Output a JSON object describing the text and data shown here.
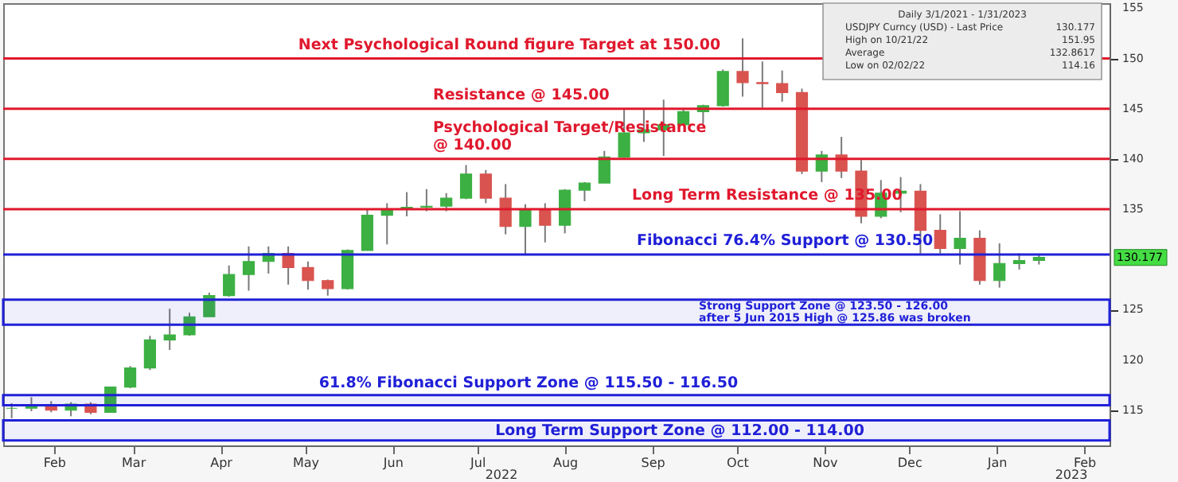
{
  "chart_data": {
    "type": "candlestick",
    "x": [
      "2022-01-31",
      "2022-02-07",
      "2022-02-14",
      "2022-02-21",
      "2022-02-28",
      "2022-03-07",
      "2022-03-14",
      "2022-03-21",
      "2022-03-28",
      "2022-04-04",
      "2022-04-11",
      "2022-04-18",
      "2022-04-25",
      "2022-05-02",
      "2022-05-09",
      "2022-05-16",
      "2022-05-23",
      "2022-05-30",
      "2022-06-06",
      "2022-06-13",
      "2022-06-20",
      "2022-06-27",
      "2022-07-04",
      "2022-07-11",
      "2022-07-18",
      "2022-07-25",
      "2022-08-01",
      "2022-08-08",
      "2022-08-15",
      "2022-08-22",
      "2022-08-29",
      "2022-09-05",
      "2022-09-12",
      "2022-09-19",
      "2022-09-26",
      "2022-10-03",
      "2022-10-10",
      "2022-10-17",
      "2022-10-24",
      "2022-10-31",
      "2022-11-07",
      "2022-11-14",
      "2022-11-21",
      "2022-11-28",
      "2022-12-05",
      "2022-12-12",
      "2022-12-19",
      "2022-12-26",
      "2023-01-02",
      "2023-01-09",
      "2023-01-16",
      "2023-01-23",
      "2023-01-30"
    ],
    "ohlc": [
      [
        115.2,
        115.7,
        114.2,
        115.2
      ],
      [
        115.2,
        116.3,
        114.9,
        115.4
      ],
      [
        115.4,
        115.9,
        114.8,
        115.0
      ],
      [
        115.0,
        115.8,
        114.4,
        115.6
      ],
      [
        115.6,
        115.8,
        114.6,
        114.8
      ],
      [
        114.8,
        117.3,
        114.8,
        117.3
      ],
      [
        117.3,
        119.4,
        117.2,
        119.2
      ],
      [
        119.2,
        122.4,
        119.0,
        122.0
      ],
      [
        122.0,
        125.1,
        121.0,
        122.5
      ],
      [
        122.5,
        124.7,
        122.4,
        124.3
      ],
      [
        124.3,
        126.7,
        124.3,
        126.4
      ],
      [
        126.4,
        129.4,
        126.3,
        128.5
      ],
      [
        128.5,
        131.3,
        126.9,
        129.8
      ],
      [
        129.8,
        131.3,
        128.6,
        130.6
      ],
      [
        130.6,
        131.3,
        127.5,
        129.2
      ],
      [
        129.2,
        129.8,
        127.0,
        127.9
      ],
      [
        127.9,
        128.0,
        126.4,
        127.1
      ],
      [
        127.1,
        131.0,
        127.0,
        130.9
      ],
      [
        130.9,
        135.0,
        130.9,
        134.4
      ],
      [
        134.4,
        135.6,
        131.5,
        135.0
      ],
      [
        135.0,
        136.7,
        134.3,
        135.2
      ],
      [
        135.2,
        137.0,
        134.8,
        135.3
      ],
      [
        135.3,
        136.6,
        134.8,
        136.1
      ],
      [
        136.1,
        139.4,
        136.0,
        138.5
      ],
      [
        138.5,
        138.9,
        135.6,
        136.1
      ],
      [
        136.1,
        137.5,
        132.5,
        133.3
      ],
      [
        133.3,
        135.5,
        130.4,
        135.0
      ],
      [
        135.0,
        135.6,
        131.7,
        133.4
      ],
      [
        133.4,
        137.0,
        132.6,
        136.9
      ],
      [
        136.9,
        137.7,
        135.8,
        137.6
      ],
      [
        137.6,
        140.8,
        137.6,
        140.2
      ],
      [
        140.2,
        145.0,
        140.1,
        142.6
      ],
      [
        142.6,
        144.9,
        141.7,
        142.9
      ],
      [
        142.9,
        145.9,
        140.3,
        143.4
      ],
      [
        143.4,
        144.9,
        143.3,
        144.7
      ],
      [
        144.7,
        145.4,
        143.5,
        145.3
      ],
      [
        145.3,
        148.9,
        145.2,
        148.7
      ],
      [
        148.7,
        152.0,
        146.2,
        147.6
      ],
      [
        147.6,
        149.7,
        145.1,
        147.5
      ],
      [
        147.5,
        148.8,
        145.7,
        146.6
      ],
      [
        146.6,
        147.0,
        138.5,
        138.8
      ],
      [
        138.8,
        140.8,
        137.7,
        140.4
      ],
      [
        140.4,
        142.2,
        138.1,
        138.8
      ],
      [
        138.8,
        139.9,
        133.6,
        134.3
      ],
      [
        134.3,
        137.9,
        134.1,
        136.6
      ],
      [
        136.6,
        138.2,
        134.7,
        136.8
      ],
      [
        136.8,
        137.5,
        130.6,
        132.9
      ],
      [
        132.9,
        134.5,
        130.6,
        131.1
      ],
      [
        131.1,
        134.8,
        129.5,
        132.1
      ],
      [
        132.1,
        132.9,
        127.5,
        127.9
      ],
      [
        127.9,
        131.6,
        127.2,
        129.6
      ],
      [
        129.6,
        130.6,
        129.0,
        129.9
      ],
      [
        129.9,
        130.5,
        129.5,
        130.2
      ]
    ],
    "colors": [
      "#3cb043",
      "#3cb043",
      "#d9534f",
      "#3cb043",
      "#d9534f",
      "#3cb043",
      "#3cb043",
      "#3cb043",
      "#3cb043",
      "#3cb043",
      "#3cb043",
      "#3cb043",
      "#3cb043",
      "#3cb043",
      "#d9534f",
      "#d9534f",
      "#d9534f",
      "#3cb043",
      "#3cb043",
      "#3cb043",
      "#3cb043",
      "#3cb043",
      "#3cb043",
      "#3cb043",
      "#d9534f",
      "#d9534f",
      "#3cb043",
      "#d9534f",
      "#3cb043",
      "#3cb043",
      "#3cb043",
      "#3cb043",
      "#3cb043",
      "#3cb043",
      "#3cb043",
      "#3cb043",
      "#3cb043",
      "#d9534f",
      "#d9534f",
      "#d9534f",
      "#d9534f",
      "#3cb043",
      "#d9534f",
      "#d9534f",
      "#3cb043",
      "#3cb043",
      "#d9534f",
      "#d9534f",
      "#3cb043",
      "#d9534f",
      "#3cb043",
      "#3cb043",
      "#3cb043"
    ],
    "xlim": [
      "2022-01-28",
      "2023-02-24"
    ],
    "xticks": [
      {
        "value": "2022-02-15",
        "label": "Feb"
      },
      {
        "value": "2022-03-15",
        "label": "Mar"
      },
      {
        "value": "2022-04-15",
        "label": "Apr"
      },
      {
        "value": "2022-05-15",
        "label": "May"
      },
      {
        "value": "2022-06-15",
        "label": "Jun"
      },
      {
        "value": "2022-07-15",
        "label": "Jul"
      },
      {
        "value": "2022-08-15",
        "label": "Aug"
      },
      {
        "value": "2022-09-15",
        "label": "Sep"
      },
      {
        "value": "2022-10-15",
        "label": "Oct"
      },
      {
        "value": "2022-11-15",
        "label": "Nov"
      },
      {
        "value": "2022-12-15",
        "label": "Dec"
      },
      {
        "value": "2023-01-15",
        "label": "Jan"
      },
      {
        "value": "2023-02-15",
        "label": "Feb"
      }
    ],
    "ylim": [
      111.5,
      155.5
    ],
    "yticks": [
      115,
      120,
      125,
      135,
      140,
      145,
      150,
      155
    ],
    "ref_lines": [
      {
        "axis": "y",
        "value": 150,
        "label": "Next Psychological Round figure Target at 150.00",
        "color": "#e0182d"
      },
      {
        "axis": "y",
        "value": 145,
        "label": "Resistance @ 145.00",
        "color": "#e0182d"
      },
      {
        "axis": "y",
        "value": 140,
        "label": "Psychological Target/Resistance\n@ 140.00",
        "color": "#e0182d"
      },
      {
        "axis": "y",
        "value": 135,
        "label": "Long Term Resistance @ 135.00",
        "color": "#e0182d"
      },
      {
        "axis": "y",
        "value": 130.5,
        "label": "Fibonacci 76.4% Support @ 130.50",
        "color": "#2020d8"
      }
    ],
    "bands": [
      {
        "axis": "y",
        "from": 123.5,
        "to": 126,
        "label": "Strong Support Zone @ 123.50 - 126.00\nafter 5 Jun 2015 High @ 125.86 was broken",
        "color": "#2020d8"
      },
      {
        "axis": "y",
        "from": 115.5,
        "to": 116.5,
        "label": "61.8% Fibonacci Support Zone @ 115.50 - 116.50",
        "color": "#2020d8"
      },
      {
        "axis": "y",
        "from": 112,
        "to": 114,
        "label": "Long Term Support Zone @ 112.00 - 114.00",
        "color": "#2020d8"
      }
    ],
    "annotations": [
      "Daily 3/1/2021 - 1/31/2023",
      "USDJPY Curncy (USD) - Last Price",
      "130.177",
      "High on 10/21/22",
      "151.95",
      "Average",
      "132.8617",
      "Low on 02/02/22",
      "114.16",
      "130.177",
      "2022",
      "2023"
    ]
  }
}
